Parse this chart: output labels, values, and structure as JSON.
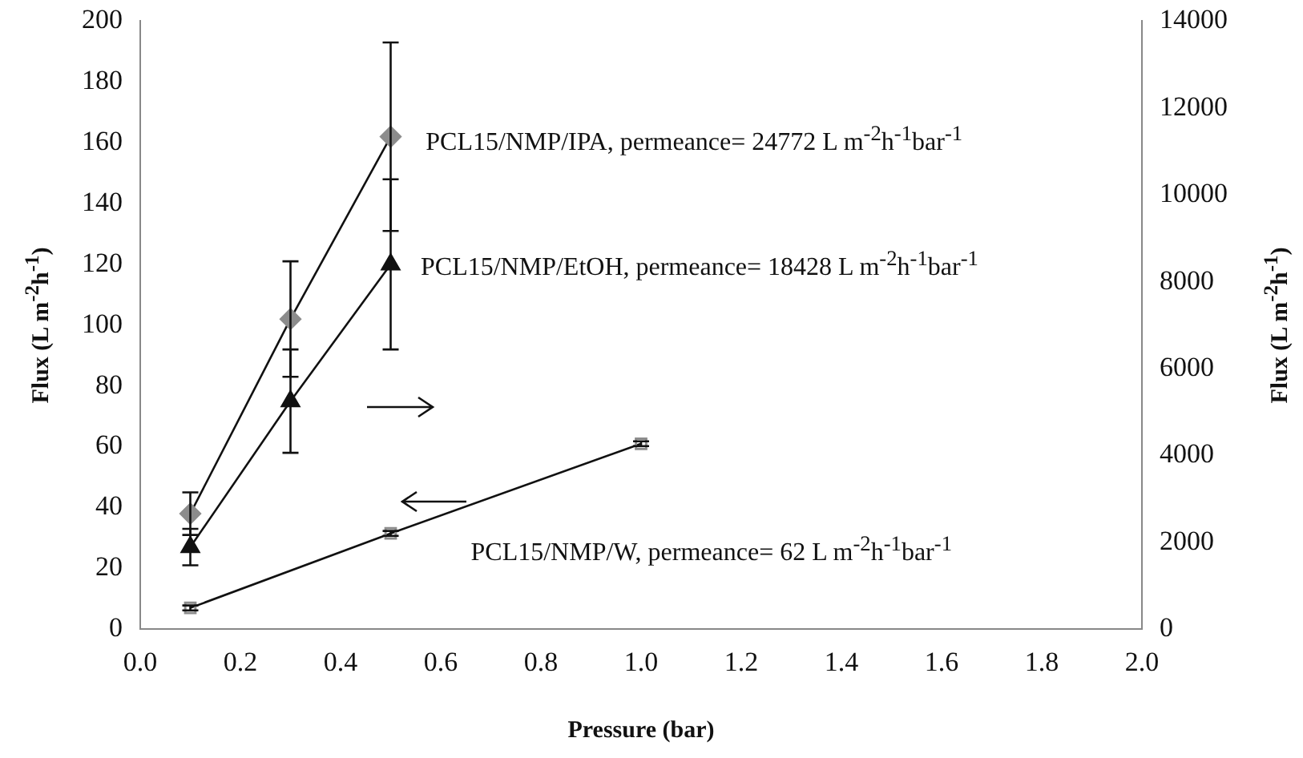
{
  "chart_data": {
    "type": "line",
    "xlabel": "Pressure (bar)",
    "ylabel": "Flux (L m$^{-2}$h$^{-1}$)",
    "y2label": "Flux (L m$^{-2}$h$^{-1}$)",
    "xlim": [
      0,
      2
    ],
    "xticks": [
      {
        "value": 0,
        "label": "0.0"
      },
      {
        "value": 0.2,
        "label": "0.2"
      },
      {
        "value": 0.4,
        "label": "0.4"
      },
      {
        "value": 0.6,
        "label": "0.6"
      },
      {
        "value": 0.8,
        "label": "0.8"
      },
      {
        "value": 1,
        "label": "1.0"
      },
      {
        "value": 1.2,
        "label": "1.2"
      },
      {
        "value": 1.4,
        "label": "1.4"
      },
      {
        "value": 1.6,
        "label": "1.6"
      },
      {
        "value": 1.8,
        "label": "1.8"
      },
      {
        "value": 2,
        "label": "2.0"
      }
    ],
    "ylim": [
      0,
      200
    ],
    "yticks": [
      0,
      20,
      40,
      60,
      80,
      100,
      120,
      140,
      160,
      180,
      200
    ],
    "y2lim": [
      0,
      14000
    ],
    "y2ticks": [
      0,
      2000,
      4000,
      6000,
      8000,
      10000,
      12000,
      14000
    ],
    "grid": false,
    "legend": false,
    "line_style": "solid",
    "series": [
      {
        "color": "#8c8c8c",
        "marker": "diamond",
        "axis": "y2",
        "x": [
          0.1,
          0.3,
          0.5
        ],
        "values": [
          2660,
          7140,
          11340
        ],
        "errors": [
          490,
          1330,
          2170
        ]
      },
      {
        "color": "#111111",
        "marker": "triangle",
        "axis": "y2",
        "x": [
          0.1,
          0.3,
          0.5
        ],
        "values": [
          1890,
          5250,
          8400
        ],
        "errors": [
          420,
          1190,
          1960
        ]
      },
      {
        "color": "#8c8c8c",
        "marker": "square",
        "x": [
          0.1,
          0.5,
          1.0
        ],
        "values": [
          7,
          31.5,
          61
        ],
        "errors": [
          0.8,
          0.8,
          0.8
        ]
      }
    ],
    "annotations": [
      "PCL15/NMP/IPA, permeance= 24772 L m$^{-2}$h$^{-1}$bar$^{-1}$",
      "PCL15/NMP/EtOH, permeance= 18428 L m$^{-2}$h$^{-1}$bar$^{-1}$",
      "PCL15/NMP/W, permeance= 62 L m$^{-2}$h$^{-1}$bar$^{-1}$"
    ]
  }
}
